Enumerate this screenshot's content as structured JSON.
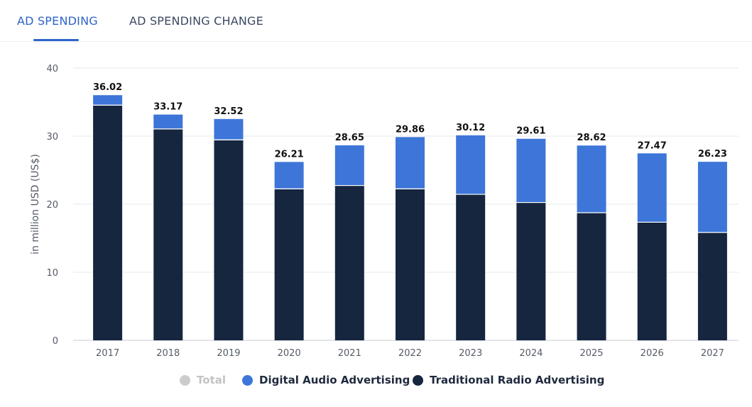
{
  "tabs": [
    {
      "label": "AD SPENDING",
      "active": true
    },
    {
      "label": "AD SPENDING CHANGE",
      "active": false
    }
  ],
  "chart_data": {
    "type": "bar",
    "stacked": true,
    "ylabel": "in million USD (US$)",
    "ylim": [
      0,
      40
    ],
    "yticks": [
      0,
      10,
      20,
      30,
      40
    ],
    "grid": true,
    "categories": [
      "2017",
      "2018",
      "2019",
      "2020",
      "2021",
      "2022",
      "2023",
      "2024",
      "2025",
      "2026",
      "2027"
    ],
    "series": [
      {
        "name": "Traditional Radio Advertising",
        "color": "#16263f",
        "values": [
          34.5,
          31.0,
          29.4,
          22.2,
          22.7,
          22.2,
          21.4,
          20.2,
          18.7,
          17.3,
          15.8
        ]
      },
      {
        "name": "Digital Audio Advertising",
        "color": "#3d76d8",
        "values": [
          1.52,
          2.17,
          3.12,
          4.01,
          5.95,
          7.66,
          8.72,
          9.41,
          9.92,
          10.17,
          10.43
        ]
      }
    ],
    "totals": {
      "name": "Total",
      "color": "#cccccc",
      "values": [
        36.02,
        33.17,
        32.52,
        26.21,
        28.65,
        29.86,
        30.12,
        29.61,
        28.62,
        27.47,
        26.23
      ],
      "labels": [
        "36.02",
        "33.17",
        "32.52",
        "26.21",
        "28.65",
        "29.86",
        "30.12",
        "29.61",
        "28.62",
        "27.47",
        "26.23"
      ]
    },
    "legend": {
      "position": "bottom",
      "items": [
        "Total",
        "Digital Audio Advertising",
        "Traditional Radio Advertising"
      ]
    }
  }
}
